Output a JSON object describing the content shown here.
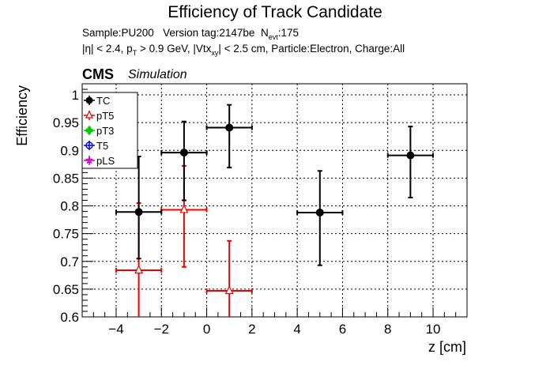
{
  "title": "Efficiency of Track Candidate",
  "subtitle1": {
    "sample": "Sample:PU200",
    "version": "Version tag:2147be",
    "nevt_prefix": "N",
    "nevt_sub": "evt",
    "nevt_value": ":175"
  },
  "subtitle2": {
    "eta": "|η| < 2.4, p",
    "pt_sub": "T",
    "pt_rest": " > 0.9 GeV, |Vtx",
    "vtx_sub": "xy",
    "vtx_rest": "| < 2.5 cm, Particle:Electron, Charge:All"
  },
  "cms_label": "CMS",
  "simulation_label": "Simulation",
  "colors": {
    "TC": "#000000",
    "pT5": "#ee0000",
    "pT3": "#00cc00",
    "T5": "#0000ee",
    "pLS": "#cc00cc"
  },
  "chart_data": {
    "type": "scatter",
    "title": "Efficiency of Track Candidate",
    "xlabel": "z [cm]",
    "ylabel": "Efficiency",
    "xlim": [
      -5.5,
      11.5
    ],
    "ylim": [
      0.6,
      1.02
    ],
    "grid": true,
    "legend_position": "top-left",
    "x_ticks": [
      "−4",
      "−2",
      "0",
      "2",
      "4",
      "6",
      "8",
      "10"
    ],
    "y_ticks": [
      "0.6",
      "0.65",
      "0.7",
      "0.75",
      "0.8",
      "0.85",
      "0.9",
      "0.95",
      "1"
    ],
    "series": [
      {
        "name": "TC",
        "marker": "filled-circle",
        "points": [
          {
            "x": -3,
            "xerr": 1,
            "y": 0.789,
            "ylo": 0.705,
            "yhi": 0.889
          },
          {
            "x": -1,
            "xerr": 1,
            "y": 0.896,
            "ylo": 0.81,
            "yhi": 0.952
          },
          {
            "x": 1,
            "xerr": 1,
            "y": 0.941,
            "ylo": 0.869,
            "yhi": 0.982
          },
          {
            "x": 5,
            "xerr": 1,
            "y": 0.788,
            "ylo": 0.693,
            "yhi": 0.863
          },
          {
            "x": 9,
            "xerr": 1,
            "y": 0.891,
            "ylo": 0.815,
            "yhi": 0.943
          }
        ]
      },
      {
        "name": "pT5",
        "marker": "open-triangle",
        "points": [
          {
            "x": -3,
            "xerr": 1,
            "y": 0.684,
            "ylo": 0.6,
            "yhi": 0.805
          },
          {
            "x": -1,
            "xerr": 1,
            "y": 0.793,
            "ylo": 0.69,
            "yhi": 0.872
          },
          {
            "x": 1,
            "xerr": 1,
            "y": 0.647,
            "ylo": 0.6,
            "yhi": 0.737
          }
        ]
      },
      {
        "name": "pT3",
        "marker": "open-cross",
        "points": []
      },
      {
        "name": "T5",
        "marker": "open-circle",
        "points": []
      },
      {
        "name": "pLS",
        "marker": "open-star",
        "points": []
      }
    ]
  }
}
